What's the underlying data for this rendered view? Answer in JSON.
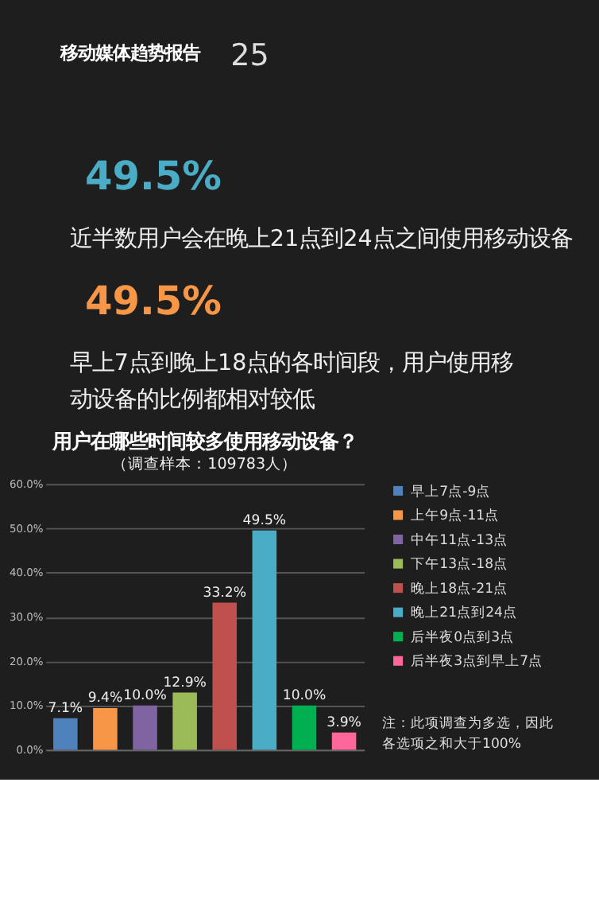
{
  "chart_data": {
    "type": "bar",
    "title": "用户在哪些时间较多使用移动设备？",
    "subtitle": "（调查样本：109783人）",
    "categories": [
      null,
      null,
      null,
      null,
      null,
      null,
      null,
      null
    ],
    "series": [
      {
        "name": "早上7点-9点",
        "color": "#4f81bd",
        "values": [
          7.1,
          null,
          null,
          null,
          null,
          null,
          null,
          null
        ],
        "value_labels": [
          "7.1%",
          null,
          null,
          null,
          null,
          null,
          null,
          null
        ]
      },
      {
        "name": "上午9点-11点",
        "color": "#f79646",
        "values": [
          null,
          9.4,
          null,
          null,
          null,
          null,
          null,
          null
        ],
        "value_labels": [
          null,
          "9.4%",
          null,
          null,
          null,
          null,
          null,
          null
        ]
      },
      {
        "name": "中午11点-13点",
        "color": "#8064a2",
        "values": [
          null,
          null,
          10.0,
          null,
          null,
          null,
          null,
          null
        ],
        "value_labels": [
          null,
          null,
          "10.0%",
          null,
          null,
          null,
          null,
          null
        ]
      },
      {
        "name": "下午13点-18点",
        "color": "#9bbb59",
        "values": [
          null,
          null,
          null,
          12.9,
          null,
          null,
          null,
          null
        ],
        "value_labels": [
          null,
          null,
          null,
          "12.9%",
          null,
          null,
          null,
          null
        ]
      },
      {
        "name": "晚上18点-21点",
        "color": "#c0504d",
        "values": [
          null,
          null,
          null,
          null,
          33.2,
          null,
          null,
          null
        ],
        "value_labels": [
          null,
          null,
          null,
          null,
          "33.2%",
          null,
          null,
          null
        ]
      },
      {
        "name": "晚上21点到24点",
        "color": "#4bacc6",
        "values": [
          null,
          null,
          null,
          null,
          null,
          49.5,
          null,
          null
        ],
        "value_labels": [
          null,
          null,
          null,
          null,
          null,
          "49.5%",
          null,
          null
        ]
      },
      {
        "name": "后半夜0点到3点",
        "color": "#00b050",
        "values": [
          null,
          null,
          null,
          null,
          null,
          null,
          10.0,
          null
        ],
        "value_labels": [
          null,
          null,
          null,
          null,
          null,
          null,
          "10.0%",
          null
        ]
      },
      {
        "name": "后半夜3点到早上7点",
        "color": "#ff6699",
        "values": [
          null,
          null,
          null,
          null,
          null,
          null,
          null,
          3.9
        ],
        "value_labels": [
          null,
          null,
          null,
          null,
          null,
          null,
          null,
          "3.9%"
        ]
      }
    ],
    "ylim": [
      0,
      60
    ],
    "yticks": [
      {
        "value": 0,
        "label": "0.0%"
      },
      {
        "value": 10,
        "label": "10.0%"
      },
      {
        "value": 20,
        "label": "20.0%"
      },
      {
        "value": 30,
        "label": "30.0%"
      },
      {
        "value": 40,
        "label": "40.0%"
      },
      {
        "value": 50,
        "label": "50.0%"
      },
      {
        "value": 60,
        "label": "60.0%"
      }
    ],
    "grid": "y",
    "legend": "right",
    "tick_labels": "y",
    "annotations": [
      "移动媒体趋势报告",
      "25",
      "49.5%",
      "近半数用户会在晚上21点到24点之间使用移动设备",
      "49.5%",
      "早上7点到晚上18点的各时间段，用户使用移动设备的比例都相对较低",
      "注：此项调查为多选，因此各选项之和大于100%"
    ]
  }
}
